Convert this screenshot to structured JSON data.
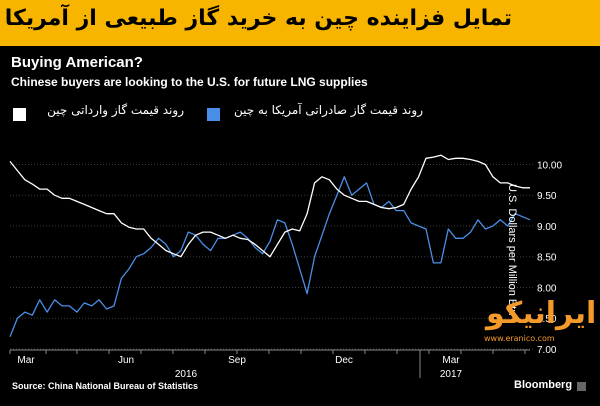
{
  "banner": {
    "title": "تمایل فزاینده چین به خرید گاز طبیعی از آمریکا"
  },
  "chart_data": {
    "type": "line",
    "title": "Buying American?",
    "subtitle": "Chinese buyers are looking to the U.S. for future LNG supplies",
    "ylabel": "U.S. Dollars per Million Btu",
    "ylim": [
      7.0,
      10.3
    ],
    "yticks": [
      "10.00",
      "9.50",
      "9.00",
      "8.50",
      "8.00",
      "7.50",
      "7.00"
    ],
    "xticks": [
      "Mar",
      "Jun",
      "Sep",
      "Dec",
      "Mar"
    ],
    "year_labels": [
      "2016",
      "2017"
    ],
    "grid": true,
    "series": [
      {
        "name": "روند قیمت گاز وارداتی چین",
        "color": "#ffffff",
        "x": [
          0,
          1,
          2,
          3,
          4,
          5,
          6,
          7,
          8,
          9,
          10,
          11,
          12,
          13,
          14,
          15,
          16,
          17,
          18,
          19,
          20,
          21,
          22,
          23,
          24,
          25,
          26,
          27,
          28,
          29,
          30,
          31,
          32,
          33,
          34,
          35,
          36,
          37,
          38,
          39,
          40,
          41,
          42,
          43,
          44,
          45,
          46,
          47,
          48,
          49,
          50,
          51,
          52,
          53,
          54,
          55,
          56,
          57,
          58,
          59,
          60,
          61,
          62,
          63,
          64,
          65,
          66,
          67,
          68,
          69,
          70
        ],
        "values": [
          10.05,
          9.9,
          9.75,
          9.68,
          9.6,
          9.6,
          9.5,
          9.45,
          9.45,
          9.4,
          9.35,
          9.3,
          9.25,
          9.2,
          9.2,
          9.05,
          8.98,
          8.95,
          8.95,
          8.8,
          8.7,
          8.6,
          8.55,
          8.5,
          8.7,
          8.85,
          8.9,
          8.9,
          8.85,
          8.8,
          8.85,
          8.8,
          8.78,
          8.7,
          8.6,
          8.5,
          8.7,
          8.9,
          8.95,
          8.92,
          9.2,
          9.7,
          9.8,
          9.75,
          9.6,
          9.5,
          9.45,
          9.4,
          9.4,
          9.35,
          9.3,
          9.28,
          9.3,
          9.35,
          9.6,
          9.8,
          10.1,
          10.12,
          10.15,
          10.08,
          10.1,
          10.1,
          10.08,
          10.05,
          10.0,
          9.8,
          9.7,
          9.7,
          9.65,
          9.62,
          9.62
        ]
      },
      {
        "name": "روند قیمت گاز صادراتی آمریکا به چین",
        "color": "#4a8fe7",
        "x": [
          0,
          1,
          2,
          3,
          4,
          5,
          6,
          7,
          8,
          9,
          10,
          11,
          12,
          13,
          14,
          15,
          16,
          17,
          18,
          19,
          20,
          21,
          22,
          23,
          24,
          25,
          26,
          27,
          28,
          29,
          30,
          31,
          32,
          33,
          34,
          35,
          36,
          37,
          38,
          39,
          40,
          41,
          42,
          43,
          44,
          45,
          46,
          47,
          48,
          49,
          50,
          51,
          52,
          53,
          54,
          55,
          56,
          57,
          58,
          59,
          60,
          61,
          62,
          63,
          64,
          65,
          66,
          67,
          68,
          69,
          70
        ],
        "values": [
          7.2,
          7.5,
          7.6,
          7.55,
          7.8,
          7.6,
          7.8,
          7.7,
          7.7,
          7.6,
          7.75,
          7.7,
          7.8,
          7.65,
          7.7,
          8.15,
          8.3,
          8.5,
          8.55,
          8.65,
          8.8,
          8.7,
          8.5,
          8.6,
          8.9,
          8.85,
          8.7,
          8.6,
          8.8,
          8.8,
          8.85,
          8.9,
          8.8,
          8.65,
          8.55,
          8.75,
          9.1,
          9.05,
          8.7,
          8.3,
          7.9,
          8.5,
          8.85,
          9.2,
          9.5,
          9.8,
          9.5,
          9.6,
          9.7,
          9.35,
          9.3,
          9.4,
          9.25,
          9.25,
          9.05,
          9.0,
          8.95,
          8.4,
          8.4,
          8.95,
          8.8,
          8.8,
          8.9,
          9.1,
          8.95,
          9.0,
          9.1,
          9.0,
          9.2,
          9.15,
          9.1
        ]
      }
    ]
  },
  "source": "Source: China National Bureau of Statistics",
  "brand": "Bloomberg",
  "watermark": {
    "logo": "ایرانیکو",
    "url": "www.eranico.com"
  }
}
